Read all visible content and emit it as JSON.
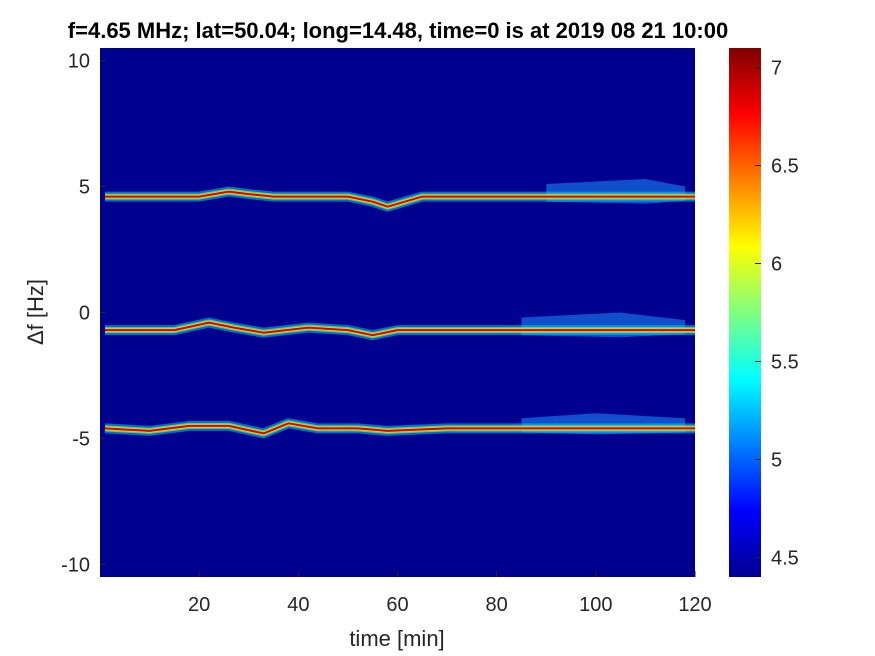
{
  "chart_data": {
    "type": "heatmap",
    "title": "f=4.65 MHz;  lat=50.04; long=14.48, time=0 is at 2019 08 21 10:00",
    "xlabel": "time [min]",
    "ylabel": "Δf [Hz]",
    "xlim": [
      0,
      120
    ],
    "ylim": [
      -10.5,
      10.5
    ],
    "xticks": [
      20,
      40,
      60,
      80,
      100,
      120
    ],
    "yticks": [
      10,
      5,
      0,
      -5,
      -10
    ],
    "colorbar": {
      "range": [
        4.4,
        7.1
      ],
      "ticks": [
        7,
        6.5,
        6,
        5.5,
        5,
        4.5
      ],
      "colormap": "jet",
      "low_color": "#00008f",
      "high_color": "#800000"
    },
    "background_value": 4.5,
    "bands": [
      {
        "center_hz": 4.6,
        "peak_value": 7.0,
        "trace": [
          [
            1,
            4.6
          ],
          [
            10,
            4.6
          ],
          [
            20,
            4.6
          ],
          [
            26,
            4.8
          ],
          [
            30,
            4.7
          ],
          [
            35,
            4.6
          ],
          [
            42,
            4.6
          ],
          [
            50,
            4.6
          ],
          [
            55,
            4.4
          ],
          [
            58,
            4.2
          ],
          [
            65,
            4.6
          ],
          [
            80,
            4.6
          ],
          [
            100,
            4.6
          ],
          [
            120,
            4.6
          ]
        ],
        "spread_region": [
          [
            90,
            5.1
          ],
          [
            110,
            5.3
          ],
          [
            118,
            5.0
          ]
        ]
      },
      {
        "center_hz": -0.7,
        "peak_value": 7.0,
        "trace": [
          [
            1,
            -0.7
          ],
          [
            15,
            -0.7
          ],
          [
            22,
            -0.4
          ],
          [
            27,
            -0.6
          ],
          [
            33,
            -0.8
          ],
          [
            42,
            -0.6
          ],
          [
            50,
            -0.7
          ],
          [
            55,
            -0.9
          ],
          [
            60,
            -0.7
          ],
          [
            80,
            -0.7
          ],
          [
            100,
            -0.7
          ],
          [
            120,
            -0.7
          ]
        ],
        "spread_region": [
          [
            85,
            -0.2
          ],
          [
            105,
            0.0
          ],
          [
            118,
            -0.3
          ]
        ]
      },
      {
        "center_hz": -4.6,
        "peak_value": 7.0,
        "trace": [
          [
            1,
            -4.6
          ],
          [
            10,
            -4.7
          ],
          [
            18,
            -4.5
          ],
          [
            26,
            -4.5
          ],
          [
            33,
            -4.8
          ],
          [
            38,
            -4.4
          ],
          [
            44,
            -4.6
          ],
          [
            52,
            -4.6
          ],
          [
            58,
            -4.7
          ],
          [
            70,
            -4.6
          ],
          [
            90,
            -4.6
          ],
          [
            100,
            -4.6
          ],
          [
            120,
            -4.6
          ]
        ],
        "spread_region": [
          [
            85,
            -4.2
          ],
          [
            100,
            -4.0
          ],
          [
            118,
            -4.2
          ]
        ]
      }
    ]
  }
}
